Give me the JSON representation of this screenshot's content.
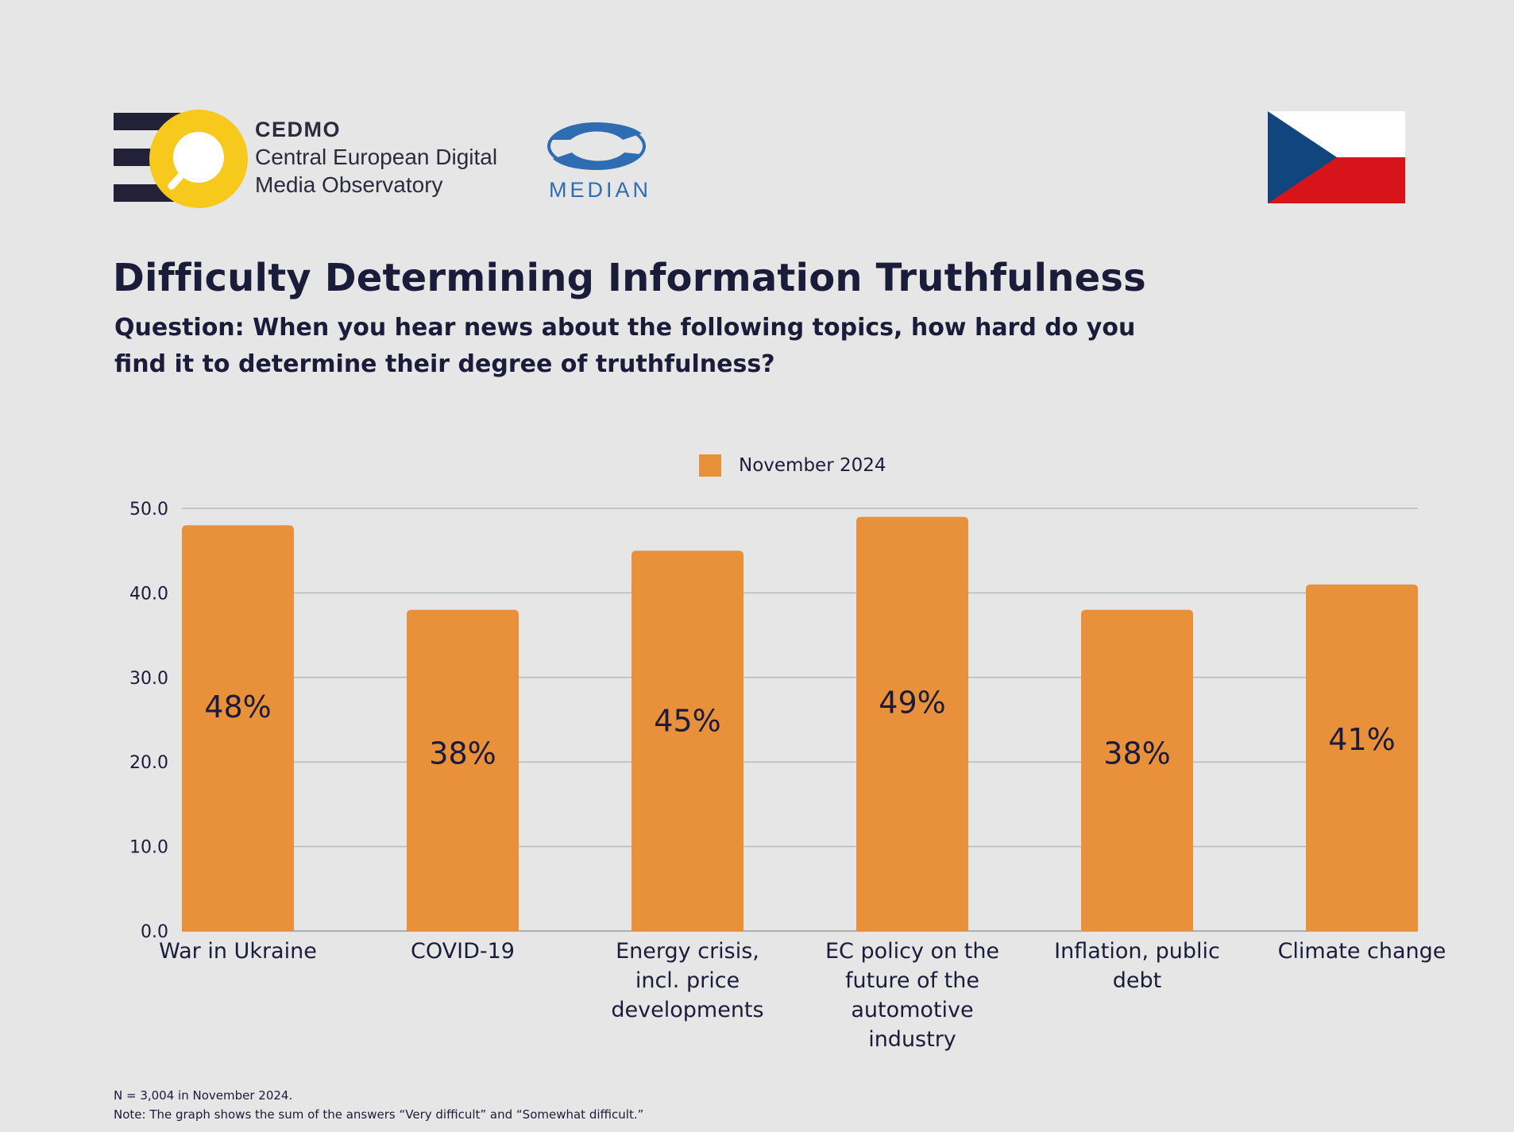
{
  "branding": {
    "cedmo_name": "CEDMO",
    "cedmo_line1": "Central European Digital",
    "cedmo_line2": "Media Observatory",
    "median_name": "MEDIAN",
    "flag": "czech-flag"
  },
  "colors": {
    "background": "#e6e6e6",
    "bar": "#e8913a",
    "text": "#1b1b3a",
    "cedmo_yellow": "#f7c91c",
    "cedmo_navy": "#232138",
    "median_blue": "#2f6db3",
    "flag_blue": "#11457e",
    "flag_red": "#d7141a"
  },
  "title": "Difficulty Determining Information Truthfulness",
  "subtitle": "Question: When you hear news about the following topics, how hard do you find it to determine their degree of truthfulness?",
  "chart_data": {
    "type": "bar",
    "categories": [
      [
        "War in Ukraine"
      ],
      [
        "COVID-19"
      ],
      [
        "Energy crisis,",
        "incl. price",
        "developments"
      ],
      [
        "EC policy on the",
        "future of the",
        "automotive",
        "industry"
      ],
      [
        "Inflation, public",
        "debt"
      ],
      [
        "Climate change"
      ]
    ],
    "series": [
      {
        "name": "November 2024",
        "values": [
          48,
          38,
          45,
          49,
          38,
          41
        ],
        "labels": [
          "48%",
          "38%",
          "45%",
          "49%",
          "38%",
          "41%"
        ]
      }
    ],
    "ylim": [
      0,
      50
    ],
    "yticks": [
      "0.0",
      "10.0",
      "20.0",
      "30.0",
      "40.0",
      "50.0"
    ],
    "grid": true,
    "legend": "top-center"
  },
  "footnotes": [
    "N = 3,004 in November 2024.",
    "Note: The graph shows the sum of the answers “Very difficult” and “Somewhat difficult.”"
  ]
}
